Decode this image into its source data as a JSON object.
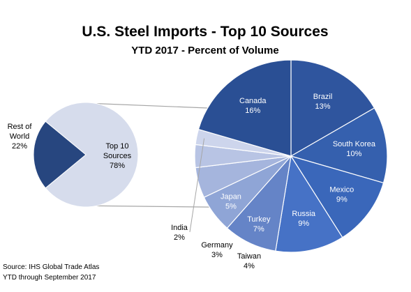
{
  "chart_data": {
    "type": "pie",
    "title": "U.S. Steel Imports - Top 10 Sources",
    "subtitle": "YTD 2017 - Percent of Volume",
    "main_pie": {
      "slices": [
        {
          "label": "Top 10 Sources",
          "value": 78,
          "display": "78%",
          "color": "#D6DCEC"
        },
        {
          "label": "Rest of World",
          "value": 22,
          "display": "22%",
          "color": "#27467F"
        }
      ]
    },
    "breakdown_pie": {
      "of": "Top 10 Sources",
      "slices": [
        {
          "label": "Brazil",
          "value": 13,
          "display": "13%",
          "color": "#2F559E"
        },
        {
          "label": "South Korea",
          "value": 10,
          "display": "10%",
          "color": "#3560AE"
        },
        {
          "label": "Mexico",
          "value": 9,
          "display": "9%",
          "color": "#3A67BA"
        },
        {
          "label": "Russia",
          "value": 9,
          "display": "9%",
          "color": "#4672C6"
        },
        {
          "label": "Turkey",
          "value": 7,
          "display": "7%",
          "color": "#6584C7"
        },
        {
          "label": "Japan",
          "value": 5,
          "display": "5%",
          "color": "#8FA5D6"
        },
        {
          "label": "Taiwan",
          "value": 4,
          "display": "4%",
          "color": "#A5B5DD"
        },
        {
          "label": "Germany",
          "value": 3,
          "display": "3%",
          "color": "#B8C4E4"
        },
        {
          "label": "India",
          "value": 2,
          "display": "2%",
          "color": "#CDD5EC"
        },
        {
          "label": "Canada",
          "value": 16,
          "display": "16%",
          "color": "#2A4F94"
        }
      ]
    },
    "source_lines": [
      "Source: IHS Global Trade Atlas",
      "YTD through September 2017"
    ]
  }
}
